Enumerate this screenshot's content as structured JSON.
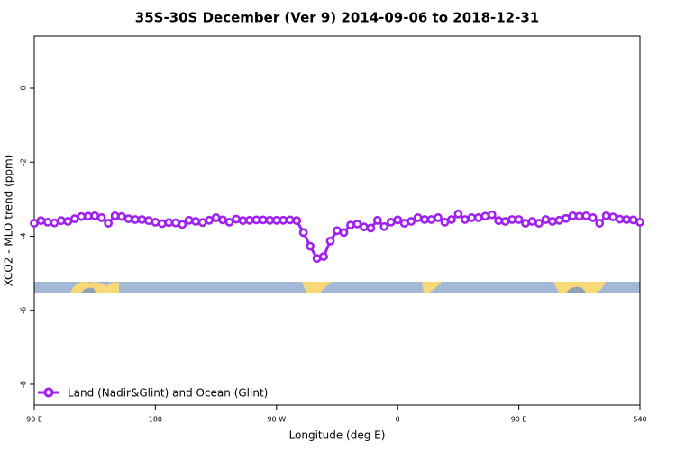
{
  "chart_data": {
    "type": "line",
    "title": "35S-30S December (Ver 9)   2014-09-06 to 2018-12-31",
    "x_label": "Longitude (deg E)",
    "y_label": "XCO2 - MLO trend (ppm)",
    "legend": "bottom-left",
    "x": [
      90,
      95,
      100,
      105,
      110,
      115,
      120,
      125,
      130,
      135,
      140,
      145,
      150,
      155,
      160,
      165,
      170,
      175,
      180,
      185,
      190,
      195,
      200,
      205,
      210,
      215,
      220,
      225,
      230,
      235,
      240,
      245,
      250,
      255,
      260,
      265,
      270,
      275,
      280,
      285,
      290,
      295,
      300,
      305,
      310,
      315,
      320,
      325,
      330,
      335,
      340,
      345,
      350,
      355,
      360,
      365,
      370,
      375,
      380,
      385,
      390,
      395,
      400,
      405,
      410,
      415,
      420,
      425,
      430,
      435,
      440,
      445,
      450,
      455,
      460,
      465,
      470,
      475,
      480,
      485,
      490,
      495,
      500,
      505,
      510,
      515,
      520,
      525,
      530,
      535,
      540
    ],
    "series": [
      {
        "name": "Land (Nadir&Glint) and Ocean (Glint)",
        "color": "#a020f0",
        "values": [
          -3.65,
          -3.58,
          -3.62,
          -3.64,
          -3.58,
          -3.6,
          -3.53,
          -3.47,
          -3.46,
          -3.45,
          -3.5,
          -3.65,
          -3.45,
          -3.47,
          -3.53,
          -3.55,
          -3.55,
          -3.58,
          -3.62,
          -3.66,
          -3.63,
          -3.64,
          -3.68,
          -3.57,
          -3.6,
          -3.63,
          -3.57,
          -3.5,
          -3.56,
          -3.62,
          -3.54,
          -3.58,
          -3.57,
          -3.56,
          -3.56,
          -3.57,
          -3.57,
          -3.57,
          -3.56,
          -3.58,
          -3.9,
          -4.27,
          -4.6,
          -4.55,
          -4.13,
          -3.85,
          -3.9,
          -3.7,
          -3.67,
          -3.75,
          -3.78,
          -3.57,
          -3.74,
          -3.62,
          -3.56,
          -3.65,
          -3.6,
          -3.5,
          -3.55,
          -3.55,
          -3.5,
          -3.62,
          -3.55,
          -3.4,
          -3.55,
          -3.5,
          -3.5,
          -3.46,
          -3.42,
          -3.58,
          -3.6,
          -3.55,
          -3.55,
          -3.65,
          -3.6,
          -3.65,
          -3.55,
          -3.6,
          -3.57,
          -3.52,
          -3.45,
          -3.46,
          -3.45,
          -3.5,
          -3.65,
          -3.45,
          -3.48,
          -3.54,
          -3.55,
          -3.56,
          -3.62
        ]
      }
    ],
    "xlim": [
      90,
      540
    ],
    "xticks": [
      {
        "value": 90,
        "label": "90 E"
      },
      180,
      {
        "value": 270,
        "label": "90 W"
      },
      {
        "value": 360,
        "label": "0"
      },
      {
        "value": 450,
        "label": "90 E"
      },
      540
    ],
    "ylim": [
      -8.56,
      1.41
    ],
    "yticks": [
      0,
      -2,
      -4,
      -6,
      -8
    ]
  }
}
